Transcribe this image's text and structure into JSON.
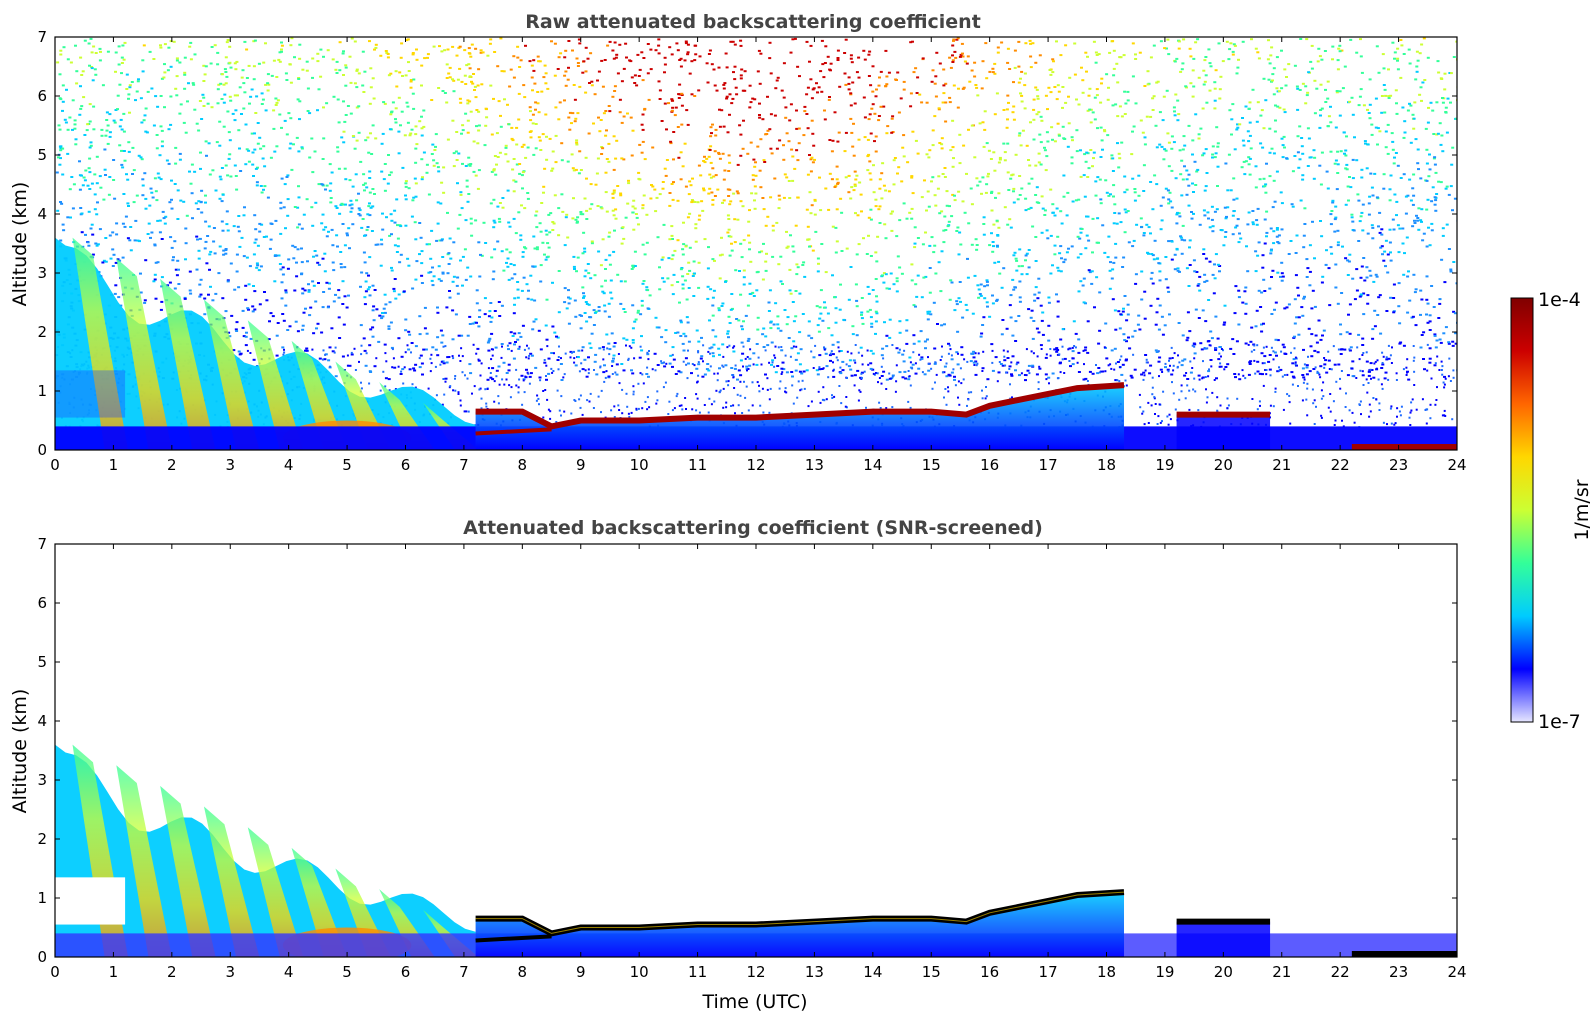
{
  "figure": {
    "x_label": "Time (UTC)",
    "colorbar": {
      "label": "1/m/sr",
      "max_label": "1e-4",
      "min_label": "1e-7",
      "scale": "log",
      "range": [
        1e-07,
        0.0001
      ],
      "colormap": [
        "#e6e6ff",
        "#0000ff",
        "#00ccff",
        "#33ff99",
        "#ccff33",
        "#ffd700",
        "#ff6600",
        "#cc0000",
        "#800000"
      ]
    }
  },
  "chart_data": [
    {
      "type": "heatmap",
      "title": "Raw attenuated backscattering coefficient",
      "xlabel": "",
      "ylabel": "Altitude (km)",
      "xlim": [
        0,
        24
      ],
      "ylim": [
        0,
        7
      ],
      "x_ticks": [
        "0",
        "1",
        "2",
        "3",
        "4",
        "5",
        "6",
        "7",
        "8",
        "9",
        "10",
        "11",
        "12",
        "13",
        "14",
        "15",
        "16",
        "17",
        "18",
        "19",
        "20",
        "21",
        "22",
        "23",
        "24"
      ],
      "y_ticks": [
        "0",
        "1",
        "2",
        "3",
        "4",
        "5",
        "6",
        "7"
      ],
      "features": [
        {
          "name": "aerosol plume",
          "time_range": [
            0,
            7.2
          ],
          "top_km": [
            3.6,
            0.6
          ],
          "peak_value": "2e-5"
        },
        {
          "name": "surface layer",
          "time_range": [
            0,
            24
          ],
          "top_km": [
            0.4,
            0.1
          ],
          "value": "3e-7"
        },
        {
          "name": "cloud layer",
          "points": [
            [
              7.2,
              0.65
            ],
            [
              8.0,
              0.65
            ],
            [
              8.5,
              0.4
            ],
            [
              9.0,
              0.5
            ],
            [
              10.0,
              0.5
            ],
            [
              11.0,
              0.55
            ],
            [
              12.0,
              0.55
            ],
            [
              13.0,
              0.6
            ],
            [
              14.0,
              0.65
            ],
            [
              15.0,
              0.65
            ],
            [
              15.6,
              0.6
            ],
            [
              16.0,
              0.75
            ],
            [
              17.0,
              0.95
            ],
            [
              17.5,
              1.05
            ],
            [
              18.3,
              1.1
            ]
          ],
          "value": "1e-4"
        },
        {
          "name": "cloud layer 2",
          "time_range": [
            19.2,
            20.8
          ],
          "altitude_km": 0.6,
          "value": "1e-4"
        },
        {
          "name": "low cloud",
          "time_range": [
            22.2,
            24
          ],
          "altitude_km": 0.05,
          "value": "1e-4"
        }
      ],
      "noise_background": "speckled, increasing with altitude, maximum 10–14 UTC above 5 km"
    },
    {
      "type": "heatmap",
      "title": "Attenuated backscattering coefficient (SNR-screened)",
      "xlabel": "Time (UTC)",
      "ylabel": "Altitude (km)",
      "xlim": [
        0,
        24
      ],
      "ylim": [
        0,
        7
      ],
      "x_ticks": [
        "0",
        "1",
        "2",
        "3",
        "4",
        "5",
        "6",
        "7",
        "8",
        "9",
        "10",
        "11",
        "12",
        "13",
        "14",
        "15",
        "16",
        "17",
        "18",
        "19",
        "20",
        "21",
        "22",
        "23",
        "24"
      ],
      "y_ticks": [
        "0",
        "1",
        "2",
        "3",
        "4",
        "5",
        "6",
        "7"
      ],
      "features": [
        {
          "name": "aerosol plume",
          "time_range": [
            0,
            7.2
          ],
          "top_km": [
            3.6,
            0.6
          ],
          "peak_value": "2e-5"
        },
        {
          "name": "surface layer",
          "time_range": [
            0,
            24
          ],
          "top_km": [
            0.4,
            0.1
          ],
          "value": "3e-7"
        },
        {
          "name": "cloud layer",
          "points": [
            [
              7.2,
              0.65
            ],
            [
              8.0,
              0.65
            ],
            [
              8.5,
              0.4
            ],
            [
              9.0,
              0.5
            ],
            [
              10.0,
              0.5
            ],
            [
              11.0,
              0.55
            ],
            [
              12.0,
              0.55
            ],
            [
              13.0,
              0.6
            ],
            [
              14.0,
              0.65
            ],
            [
              15.0,
              0.65
            ],
            [
              15.6,
              0.6
            ],
            [
              16.0,
              0.75
            ],
            [
              17.0,
              0.95
            ],
            [
              17.5,
              1.05
            ],
            [
              18.3,
              1.1
            ]
          ],
          "value": "saturated (black core)"
        },
        {
          "name": "cloud layer 2",
          "time_range": [
            19.2,
            20.8
          ],
          "altitude_km": 0.6,
          "value": "saturated (black core)"
        },
        {
          "name": "low cloud",
          "time_range": [
            22.2,
            24
          ],
          "altitude_km": 0.05,
          "value": "saturated (black core)"
        }
      ],
      "noise_background": "removed (white)"
    }
  ]
}
